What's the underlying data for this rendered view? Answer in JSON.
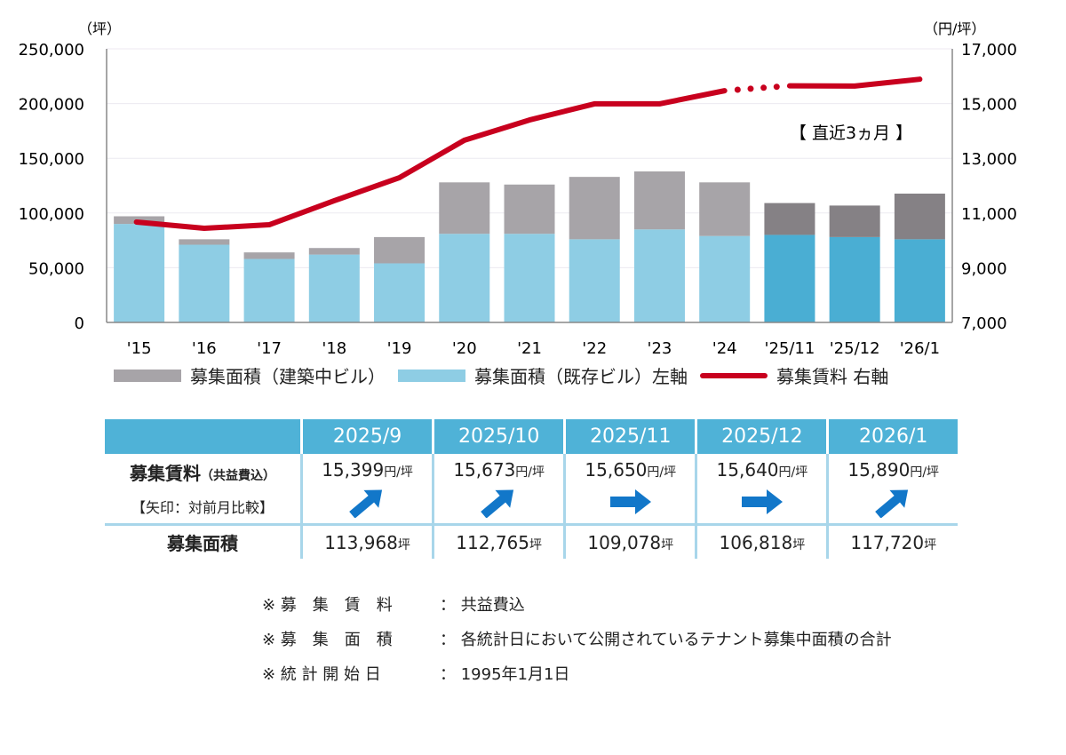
{
  "chart_data": {
    "type": "bar+line",
    "left_axis_unit": "（坪）",
    "right_axis_unit": "（円/坪）",
    "left_ylim": [
      0,
      250000
    ],
    "left_ticks": [
      "0",
      "50,000",
      "100,000",
      "150,000",
      "200,000",
      "250,000"
    ],
    "right_ylim": [
      7000,
      17000
    ],
    "right_ticks": [
      "7,000",
      "9,000",
      "11,000",
      "13,000",
      "15,000",
      "17,000"
    ],
    "categories": [
      "'15",
      "'16",
      "'17",
      "'18",
      "'19",
      "'20",
      "'21",
      "'22",
      "'23",
      "'24",
      "'25/11",
      "'25/12",
      "'26/1"
    ],
    "series": [
      {
        "name": "募集面積（既存ビル）左軸",
        "type": "bar",
        "axis": "left",
        "color": "#8ecde4",
        "recent_color": "#4aaed3",
        "values": [
          90000,
          71000,
          58000,
          62000,
          54000,
          81000,
          81000,
          76000,
          85000,
          79000,
          80000,
          78000,
          76000
        ]
      },
      {
        "name": "募集面積（建築中ビル）",
        "type": "bar",
        "axis": "left",
        "color": "#a7a4a8",
        "recent_color": "#858185",
        "values": [
          7000,
          5000,
          6000,
          6000,
          24000,
          47000,
          45000,
          57000,
          53000,
          49000,
          29078,
          28818,
          41720
        ]
      },
      {
        "name": "募集賃料 右軸",
        "type": "line",
        "axis": "right",
        "color": "#c8001e",
        "values": [
          10670,
          10440,
          10570,
          11450,
          12290,
          13660,
          14400,
          14990,
          14990,
          15470,
          15650,
          15640,
          15890
        ]
      }
    ],
    "annotation": "【 直近3ヵ月 】",
    "grid": true,
    "legend_position": "bottom"
  },
  "table": {
    "months": [
      "2025/9",
      "2025/10",
      "2025/11",
      "2025/12",
      "2026/1"
    ],
    "rent_label": "募集賃料",
    "rent_label_sub": "（共益費込）",
    "arrow_label": "【矢印：対前月比較】",
    "rent_values": [
      "15,399",
      "15,673",
      "15,650",
      "15,640",
      "15,890"
    ],
    "rent_unit": "円/坪",
    "arrows": [
      "up",
      "up",
      "flat",
      "flat",
      "up"
    ],
    "arrow_color": "#1277c9",
    "area_label": "募集面積",
    "area_values": [
      "113,968",
      "112,765",
      "109,078",
      "106,818",
      "117,720"
    ],
    "area_unit": "坪"
  },
  "notes": [
    {
      "key": "※ 募　集　賃　料",
      "value": "：  共益費込"
    },
    {
      "key": "※ 募　集　面　積",
      "value": "：  各統計日において公開されているテナント募集中面積の合計"
    },
    {
      "key": "※ 統 計 開 始 日",
      "value": "：  1995年1月1日"
    }
  ]
}
